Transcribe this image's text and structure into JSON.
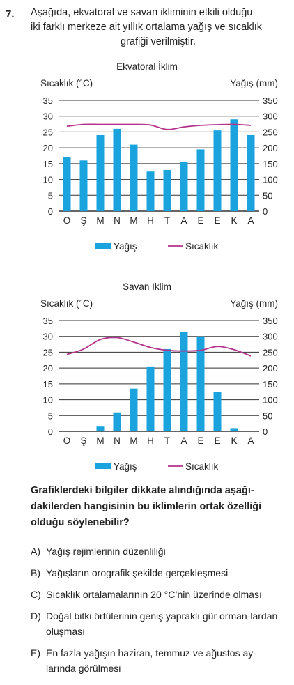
{
  "question": {
    "number": "7.",
    "intro_lines": [
      "Aşağıda, ekvatoral ve savan ikliminin etkili olduğu",
      "iki farklı merkeze ait yıllık ortalama yağış ve sıcaklık",
      "grafiği verilmiştir."
    ],
    "prompt_lines": [
      "Grafiklerdeki bilgiler dikkate alındığında aşağı-",
      "dakilerden hangisinin bu iklimlerin ortak özelliği",
      "olduğu söylenebilir?"
    ],
    "options": [
      {
        "letter": "A)",
        "text": "Yağış rejimlerinin düzenliliği"
      },
      {
        "letter": "B)",
        "text": "Yağışların orografik şekilde gerçekleşmesi"
      },
      {
        "letter": "C)",
        "text": "Sıcaklık ortalamalarının 20 °C’nin üzerinde olması"
      },
      {
        "letter": "D)",
        "text": "Doğal bitki örtülerinin geniş yapraklı gür orman-lardan oluşması"
      },
      {
        "letter": "E)",
        "text": "En fazla yağışın haziran, temmuz ve ağustos ay-larında görülmesi"
      }
    ]
  },
  "colors": {
    "bar": "#1aa3dc",
    "line": "#b5338a",
    "grid": "#333333"
  },
  "chart_data": [
    {
      "type": "bar+line",
      "title": "Ekvatoral İklim",
      "ylabel_left": "Sıcaklık (°C)",
      "ylabel_right": "Yağış (mm)",
      "categories": [
        "O",
        "Ş",
        "M",
        "N",
        "M",
        "H",
        "T",
        "A",
        "E",
        "E",
        "K",
        "A"
      ],
      "left_ticks": [
        "35",
        "30",
        "25",
        "20",
        "15",
        "10",
        "5",
        "0"
      ],
      "right_ticks": [
        "350",
        "300",
        "250",
        "200",
        "150",
        "100",
        "50",
        "0"
      ],
      "ylim_left": [
        0,
        35
      ],
      "ylim_right": [
        0,
        350
      ],
      "grid": true,
      "series": [
        {
          "name": "Yağış",
          "kind": "bar",
          "axis": "right",
          "values": [
            170,
            160,
            240,
            260,
            210,
            125,
            130,
            155,
            195,
            255,
            290,
            240
          ]
        },
        {
          "name": "Sıcaklık",
          "kind": "line",
          "axis": "left",
          "values": [
            26.8,
            27.4,
            27.4,
            27.4,
            27.4,
            27.2,
            25.8,
            26.6,
            27.1,
            27.3,
            27.4,
            27.1
          ]
        }
      ],
      "legend": {
        "position": "bottom",
        "bar_label": "Yağış",
        "line_label": "Sıcaklık"
      }
    },
    {
      "type": "bar+line",
      "title": "Savan İklim",
      "ylabel_left": "Sıcaklık (°C)",
      "ylabel_right": "Yağış (mm)",
      "categories": [
        "O",
        "Ş",
        "M",
        "N",
        "M",
        "H",
        "T",
        "A",
        "E",
        "E",
        "K",
        "A"
      ],
      "left_ticks": [
        "35",
        "30",
        "25",
        "20",
        "15",
        "10",
        "5",
        "0"
      ],
      "right_ticks": [
        "350",
        "300",
        "250",
        "200",
        "150",
        "100",
        "50",
        "0"
      ],
      "ylim_left": [
        0,
        35
      ],
      "ylim_right": [
        0,
        350
      ],
      "grid": true,
      "series": [
        {
          "name": "Yağış",
          "kind": "bar",
          "axis": "right",
          "values": [
            0,
            0,
            15,
            60,
            135,
            205,
            260,
            315,
            300,
            125,
            10,
            0
          ]
        },
        {
          "name": "Sıcaklık",
          "kind": "line",
          "axis": "left",
          "values": [
            24.3,
            26.0,
            29.0,
            29.6,
            28.2,
            26.5,
            25.6,
            25.4,
            25.6,
            26.8,
            25.8,
            23.8
          ]
        }
      ],
      "legend": {
        "position": "bottom",
        "bar_label": "Yağış",
        "line_label": "Sıcaklık"
      }
    }
  ]
}
